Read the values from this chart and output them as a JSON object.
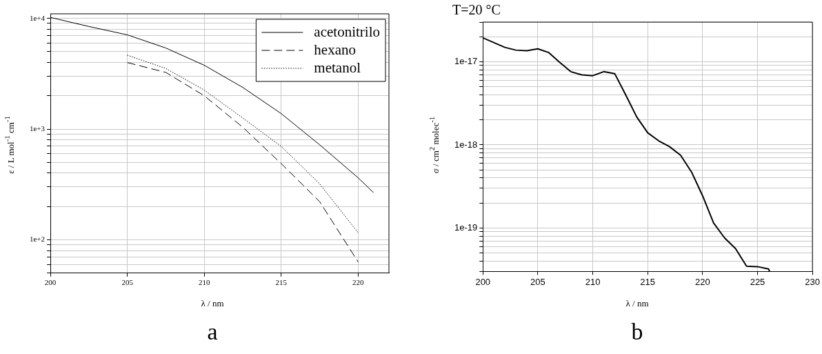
{
  "chart_data": [
    {
      "type": "line",
      "xlabel": "λ / nm",
      "ylabel": "ε / L mol$^{-1}$ cm$^{-1}$",
      "log": "y",
      "grid": true,
      "legend": "top right",
      "marker": "none",
      "annotations": [
        "a"
      ],
      "xlim": [
        200,
        222
      ],
      "xticks": [
        200,
        205,
        210,
        215,
        220
      ],
      "ylim": [
        50,
        11000
      ],
      "yticks": [
        {
          "value": 50,
          "label": null
        },
        {
          "value": 60,
          "label": null
        },
        {
          "value": 70,
          "label": null
        },
        {
          "value": 80,
          "label": null
        },
        {
          "value": 90,
          "label": null
        },
        {
          "value": 100,
          "label": "1e+2"
        },
        {
          "value": 200,
          "label": null
        },
        {
          "value": 300,
          "label": null
        },
        {
          "value": 400,
          "label": null
        },
        {
          "value": 500,
          "label": null
        },
        {
          "value": 600,
          "label": null
        },
        {
          "value": 700,
          "label": null
        },
        {
          "value": 800,
          "label": null
        },
        {
          "value": 900,
          "label": null
        },
        {
          "value": 1000,
          "label": "1e+3"
        },
        {
          "value": 2000,
          "label": null
        },
        {
          "value": 3000,
          "label": null
        },
        {
          "value": 4000,
          "label": null
        },
        {
          "value": 5000,
          "label": null
        },
        {
          "value": 6000,
          "label": null
        },
        {
          "value": 7000,
          "label": null
        },
        {
          "value": 8000,
          "label": null
        },
        {
          "value": 9000,
          "label": null
        },
        {
          "value": 10000,
          "label": "1e+4"
        }
      ],
      "series": [
        {
          "name": "acetonitrilo",
          "color": "#000000",
          "line_style": "solid",
          "x": [
            200,
            202.5,
            205,
            207.5,
            210,
            212.5,
            215,
            217.5,
            220,
            221
          ],
          "values": [
            10200,
            8450,
            7100,
            5400,
            3770,
            2380,
            1380,
            721,
            363,
            267
          ]
        },
        {
          "name": "hexano",
          "color": "#000000",
          "line_style": "dashed",
          "x": [
            205,
            207.5,
            210,
            212.5,
            215,
            217.5,
            220
          ],
          "values": [
            3990,
            3250,
            2000,
            1040,
            488,
            221,
            63
          ]
        },
        {
          "name": "metanol",
          "color": "#000000",
          "line_style": "dotted",
          "x": [
            205,
            207.5,
            210,
            212.5,
            215,
            217.5,
            220
          ],
          "values": [
            4650,
            3530,
            2250,
            1260,
            698,
            320,
            116
          ]
        }
      ]
    },
    {
      "type": "line",
      "title": "T=20 °C",
      "xlabel": "λ / nm",
      "ylabel": "σ / cm$^{2}$ molec$^{-1}$",
      "log": "y",
      "grid": true,
      "marker": "none",
      "annotations": [
        "b"
      ],
      "xlim": [
        200,
        230
      ],
      "xticks": [
        200,
        205,
        210,
        215,
        220,
        225,
        230
      ],
      "ylim": [
        3e-20,
        3e-17
      ],
      "yticks": [
        {
          "value": 3e-20,
          "label": null
        },
        {
          "value": 4e-20,
          "label": null
        },
        {
          "value": 5e-20,
          "label": null
        },
        {
          "value": 6e-20,
          "label": null
        },
        {
          "value": 7e-20,
          "label": null
        },
        {
          "value": 8e-20,
          "label": null
        },
        {
          "value": 9e-20,
          "label": null
        },
        {
          "value": 1e-19,
          "label": "1e-19"
        },
        {
          "value": 2e-19,
          "label": null
        },
        {
          "value": 3e-19,
          "label": null
        },
        {
          "value": 4e-19,
          "label": null
        },
        {
          "value": 5e-19,
          "label": null
        },
        {
          "value": 6e-19,
          "label": null
        },
        {
          "value": 7e-19,
          "label": null
        },
        {
          "value": 8e-19,
          "label": null
        },
        {
          "value": 9e-19,
          "label": null
        },
        {
          "value": 1e-18,
          "label": "1e-18"
        },
        {
          "value": 2e-18,
          "label": null
        },
        {
          "value": 3e-18,
          "label": null
        },
        {
          "value": 4e-18,
          "label": null
        },
        {
          "value": 5e-18,
          "label": null
        },
        {
          "value": 6e-18,
          "label": null
        },
        {
          "value": 7e-18,
          "label": null
        },
        {
          "value": 8e-18,
          "label": null
        },
        {
          "value": 9e-18,
          "label": null
        },
        {
          "value": 1e-17,
          "label": "1e-17"
        },
        {
          "value": 2e-17,
          "label": null
        },
        {
          "value": 3e-17,
          "label": null
        }
      ],
      "series": [
        {
          "color": "#000000",
          "line_style": "solid",
          "x": [
            200,
            202,
            203,
            204,
            205,
            206,
            207,
            208,
            209,
            210,
            211,
            212,
            213,
            214,
            215,
            216,
            217,
            218,
            219,
            220,
            221,
            222,
            223,
            224,
            225,
            226,
            226.1
          ],
          "values": [
            1.94e-17,
            1.49e-17,
            1.38e-17,
            1.36e-17,
            1.43e-17,
            1.29e-17,
            9.8e-18,
            7.6e-18,
            6.95e-18,
            6.8e-18,
            7.6e-18,
            7.2e-18,
            4e-18,
            2.17e-18,
            1.4e-18,
            1.12e-18,
            9.5e-19,
            7.5e-19,
            4.7e-19,
            2.44e-19,
            1.15e-19,
            7.6e-20,
            5.65e-20,
            3.47e-20,
            3.43e-20,
            3.22e-20,
            3e-20
          ]
        }
      ]
    }
  ]
}
